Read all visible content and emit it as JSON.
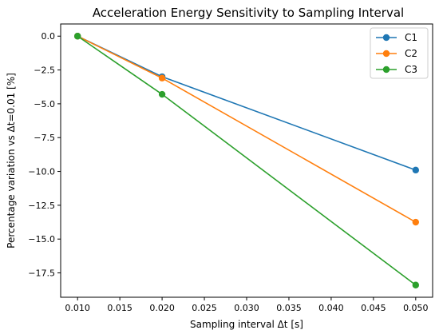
{
  "chart_data": {
    "type": "line",
    "title": "Acceleration Energy Sensitivity to Sampling Interval",
    "xlabel": "Sampling interval Δt [s]",
    "ylabel": "Percentage variation vs Δt=0.01 [%]",
    "x": [
      0.01,
      0.02,
      0.05
    ],
    "xlim": [
      0.008,
      0.052
    ],
    "ylim": [
      -19.3,
      0.9
    ],
    "xticks": [
      0.01,
      0.015,
      0.02,
      0.025,
      0.03,
      0.035,
      0.04,
      0.045,
      0.05
    ],
    "xtick_labels": [
      "0.010",
      "0.015",
      "0.020",
      "0.025",
      "0.030",
      "0.035",
      "0.040",
      "0.045",
      "0.050"
    ],
    "yticks": [
      0.0,
      -2.5,
      -5.0,
      -7.5,
      -10.0,
      -12.5,
      -15.0,
      -17.5
    ],
    "ytick_labels": [
      "0.0",
      "−2.5",
      "−5.0",
      "−7.5",
      "−10.0",
      "−12.5",
      "−15.0",
      "−17.5"
    ],
    "grid": false,
    "legend_position": "top-right",
    "series": [
      {
        "name": "C1",
        "color": "#1f77b4",
        "values": [
          0.0,
          -3.0,
          -9.9
        ]
      },
      {
        "name": "C2",
        "color": "#ff7f0e",
        "values": [
          0.0,
          -3.1,
          -13.75
        ]
      },
      {
        "name": "C3",
        "color": "#2ca02c",
        "values": [
          0.0,
          -4.3,
          -18.4
        ]
      }
    ]
  }
}
